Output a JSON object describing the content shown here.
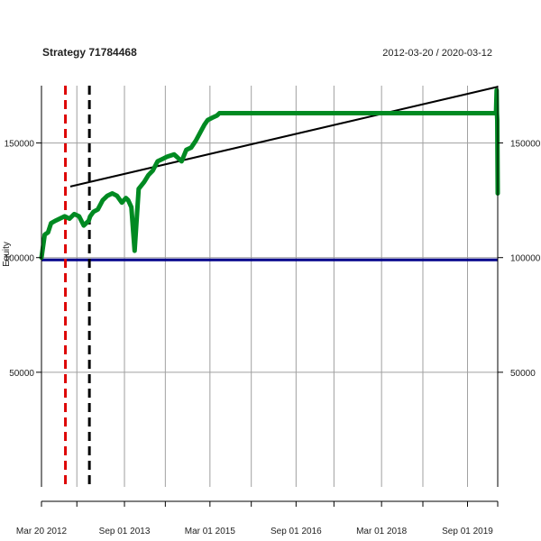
{
  "chart_data": {
    "type": "line",
    "title": "Strategy 71784468",
    "date_range": "2012-03-20 / 2020-03-12",
    "ylabel": "Equity",
    "xlabel": "",
    "x_range": [
      "2012-03-20",
      "2020-03-12"
    ],
    "ylim": [
      0,
      175000
    ],
    "grid": true,
    "x_ticks": [
      {
        "date": "2012-03-20",
        "label": "Mar 20 2012"
      },
      {
        "date": "2013-09-01",
        "label": "Sep 01 2013"
      },
      {
        "date": "2015-03-01",
        "label": "Mar 01 2015"
      },
      {
        "date": "2016-09-01",
        "label": "Sep 01 2016"
      },
      {
        "date": "2018-03-01",
        "label": "Mar 01 2018"
      },
      {
        "date": "2019-09-01",
        "label": "Sep 01 2019"
      }
    ],
    "y_ticks": [
      {
        "value": 50000,
        "label": "50000"
      },
      {
        "value": 100000,
        "label": "100000"
      },
      {
        "value": 150000,
        "label": "150000"
      }
    ],
    "vertical_gridlines": [
      "2012-03-20",
      "2012-11-01",
      "2013-09-01",
      "2014-05-20",
      "2015-03-01",
      "2015-11-20",
      "2016-09-01",
      "2017-05-01",
      "2018-03-01",
      "2018-11-20",
      "2019-09-01",
      "2020-03-12"
    ],
    "baseline": {
      "value": 99000,
      "color": "#00008b"
    },
    "trendline": {
      "x": [
        "2012-09-20",
        "2020-03-12"
      ],
      "y": [
        131000,
        174500
      ],
      "color": "#000000"
    },
    "vlines": [
      {
        "date": "2012-08-20",
        "color": "#dd0000",
        "style": "dashed"
      },
      {
        "date": "2013-01-20",
        "color": "#000000",
        "style": "dashed"
      }
    ],
    "series": [
      {
        "color": "#008a22",
        "x": [
          "2012-03-20",
          "2012-04-10",
          "2012-05-01",
          "2012-05-20",
          "2012-06-15",
          "2012-07-15",
          "2012-08-15",
          "2012-09-15",
          "2012-10-15",
          "2012-11-15",
          "2012-12-15",
          "2013-01-15",
          "2013-01-25",
          "2013-02-15",
          "2013-03-15",
          "2013-04-15",
          "2013-05-15",
          "2013-06-15",
          "2013-07-15",
          "2013-08-15",
          "2013-09-10",
          "2013-09-25",
          "2013-10-15",
          "2013-11-05",
          "2013-12-01",
          "2014-01-05",
          "2014-02-01",
          "2014-03-01",
          "2014-04-01",
          "2014-05-01",
          "2014-06-01",
          "2014-07-15",
          "2014-08-01",
          "2014-09-01",
          "2014-10-01",
          "2014-11-01",
          "2014-12-01",
          "2015-01-01",
          "2015-01-25",
          "2015-02-15",
          "2015-03-15",
          "2015-04-15",
          "2015-05-01",
          "2015-06-01",
          "2016-01-01",
          "2017-01-01",
          "2018-01-01",
          "2019-01-01",
          "2020-01-01",
          "2020-03-01",
          "2020-03-05",
          "2020-03-07",
          "2020-03-09",
          "2020-03-12"
        ],
        "y": [
          100000,
          110000,
          111000,
          115000,
          116000,
          117000,
          118000,
          117000,
          119000,
          118000,
          114000,
          116000,
          118000,
          120000,
          121000,
          125000,
          127000,
          128000,
          127000,
          124000,
          126000,
          125000,
          122000,
          103000,
          130000,
          133000,
          136000,
          138000,
          142000,
          143000,
          144000,
          145000,
          144000,
          142000,
          147000,
          148000,
          151000,
          155000,
          158000,
          160000,
          161000,
          162000,
          163000,
          163000,
          163000,
          163000,
          163000,
          163000,
          163000,
          163000,
          173000,
          163000,
          160000,
          128000
        ]
      }
    ]
  }
}
